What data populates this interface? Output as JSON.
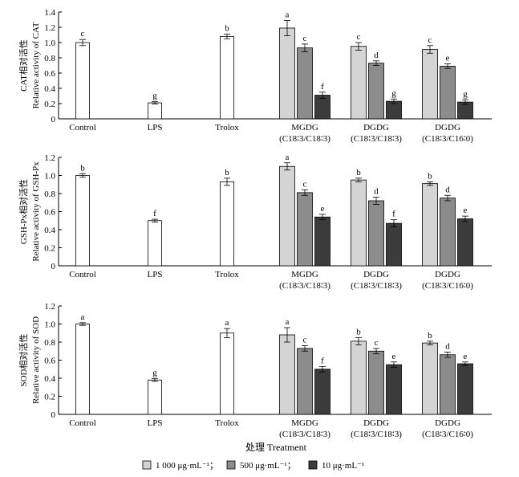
{
  "chart_data": [
    {
      "type": "bar",
      "ylabel_cn": "CAT相对活性",
      "ylabel_en": "Relative activity of CAT",
      "ylim": [
        0,
        1.4
      ],
      "yticks": [
        "0",
        "0.2",
        "0.4",
        "0.6",
        "0.8",
        "1.0",
        "1.2",
        "1.4"
      ],
      "groups": [
        {
          "label": "Control",
          "sublabel": "",
          "bars": [
            {
              "series": "control",
              "value": 1.0,
              "err": 0.04,
              "letter": "c"
            }
          ]
        },
        {
          "label": "LPS",
          "sublabel": "",
          "bars": [
            {
              "series": "control",
              "value": 0.21,
              "err": 0.015,
              "letter": "g"
            }
          ]
        },
        {
          "label": "Trolox",
          "sublabel": "",
          "bars": [
            {
              "series": "control",
              "value": 1.08,
              "err": 0.03,
              "letter": "b"
            }
          ]
        },
        {
          "label": "MGDG",
          "sublabel": "(C18∶3/C18∶3)",
          "bars": [
            {
              "series": "s1",
              "value": 1.19,
              "err": 0.1,
              "letter": "a"
            },
            {
              "series": "s2",
              "value": 0.93,
              "err": 0.05,
              "letter": "c"
            },
            {
              "series": "s3",
              "value": 0.31,
              "err": 0.04,
              "letter": "f"
            }
          ]
        },
        {
          "label": "DGDG",
          "sublabel": "(C18∶3/C18∶3)",
          "bars": [
            {
              "series": "s1",
              "value": 0.95,
              "err": 0.05,
              "letter": "c"
            },
            {
              "series": "s2",
              "value": 0.73,
              "err": 0.03,
              "letter": "d"
            },
            {
              "series": "s3",
              "value": 0.23,
              "err": 0.03,
              "letter": "g"
            }
          ]
        },
        {
          "label": "DGDG",
          "sublabel": "(C18∶3/C16∶0)",
          "bars": [
            {
              "series": "s1",
              "value": 0.91,
              "err": 0.05,
              "letter": "c"
            },
            {
              "series": "s2",
              "value": 0.69,
              "err": 0.03,
              "letter": "e"
            },
            {
              "series": "s3",
              "value": 0.22,
              "err": 0.03,
              "letter": "g"
            }
          ]
        }
      ]
    },
    {
      "type": "bar",
      "ylabel_cn": "GSH-Px相对活性",
      "ylabel_en": "Relative activity of GSH-Px",
      "ylim": [
        0,
        1.2
      ],
      "yticks": [
        "0",
        "0.2",
        "0.4",
        "0.6",
        "0.8",
        "1.0",
        "1.2"
      ],
      "groups": [
        {
          "label": "Control",
          "sublabel": "",
          "bars": [
            {
              "series": "control",
              "value": 1.0,
              "err": 0.02,
              "letter": "b"
            }
          ]
        },
        {
          "label": "LPS",
          "sublabel": "",
          "bars": [
            {
              "series": "control",
              "value": 0.5,
              "err": 0.015,
              "letter": "f"
            }
          ]
        },
        {
          "label": "Trolox",
          "sublabel": "",
          "bars": [
            {
              "series": "control",
              "value": 0.93,
              "err": 0.04,
              "letter": "b"
            }
          ]
        },
        {
          "label": "MGDG",
          "sublabel": "(C18∶3/C18∶3)",
          "bars": [
            {
              "series": "s1",
              "value": 1.1,
              "err": 0.04,
              "letter": "a"
            },
            {
              "series": "s2",
              "value": 0.81,
              "err": 0.03,
              "letter": "c"
            },
            {
              "series": "s3",
              "value": 0.54,
              "err": 0.03,
              "letter": "e"
            }
          ]
        },
        {
          "label": "DGDG",
          "sublabel": "(C18∶3/C18∶3)",
          "bars": [
            {
              "series": "s1",
              "value": 0.95,
              "err": 0.02,
              "letter": "b"
            },
            {
              "series": "s2",
              "value": 0.72,
              "err": 0.04,
              "letter": "d"
            },
            {
              "series": "s3",
              "value": 0.47,
              "err": 0.04,
              "letter": "f"
            }
          ]
        },
        {
          "label": "DGDG",
          "sublabel": "(C18∶3/C16∶0)",
          "bars": [
            {
              "series": "s1",
              "value": 0.91,
              "err": 0.02,
              "letter": "b"
            },
            {
              "series": "s2",
              "value": 0.75,
              "err": 0.03,
              "letter": "d"
            },
            {
              "series": "s3",
              "value": 0.52,
              "err": 0.03,
              "letter": "e"
            }
          ]
        }
      ]
    },
    {
      "type": "bar",
      "ylabel_cn": "SOD相对活性",
      "ylabel_en": "Relative activity of SOD",
      "ylim": [
        0,
        1.2
      ],
      "yticks": [
        "0",
        "0.2",
        "0.4",
        "0.6",
        "0.8",
        "1.0",
        "1.2"
      ],
      "groups": [
        {
          "label": "Control",
          "sublabel": "",
          "bars": [
            {
              "series": "control",
              "value": 1.0,
              "err": 0.015,
              "letter": "a"
            }
          ]
        },
        {
          "label": "LPS",
          "sublabel": "",
          "bars": [
            {
              "series": "control",
              "value": 0.38,
              "err": 0.015,
              "letter": "g"
            }
          ]
        },
        {
          "label": "Trolox",
          "sublabel": "",
          "bars": [
            {
              "series": "control",
              "value": 0.9,
              "err": 0.05,
              "letter": "a"
            }
          ]
        },
        {
          "label": "MGDG",
          "sublabel": "(C18∶3/C18∶3)",
          "bars": [
            {
              "series": "s1",
              "value": 0.88,
              "err": 0.08,
              "letter": "a"
            },
            {
              "series": "s2",
              "value": 0.73,
              "err": 0.03,
              "letter": "c"
            },
            {
              "series": "s3",
              "value": 0.5,
              "err": 0.03,
              "letter": "f"
            }
          ]
        },
        {
          "label": "DGDG",
          "sublabel": "(C18∶3/C18∶3)",
          "bars": [
            {
              "series": "s1",
              "value": 0.81,
              "err": 0.04,
              "letter": "b"
            },
            {
              "series": "s2",
              "value": 0.7,
              "err": 0.03,
              "letter": "c"
            },
            {
              "series": "s3",
              "value": 0.55,
              "err": 0.03,
              "letter": "e"
            }
          ]
        },
        {
          "label": "DGDG",
          "sublabel": "(C18∶3/C16∶0)",
          "bars": [
            {
              "series": "s1",
              "value": 0.79,
              "err": 0.02,
              "letter": "b"
            },
            {
              "series": "s2",
              "value": 0.66,
              "err": 0.03,
              "letter": "d"
            },
            {
              "series": "s3",
              "value": 0.56,
              "err": 0.02,
              "letter": "e"
            }
          ]
        }
      ]
    }
  ],
  "xlabel": "处理 Treatment",
  "legend": [
    {
      "key": "s1",
      "label": "1 000 μg·mL⁻¹；",
      "color": "#d4d4d4"
    },
    {
      "key": "s2",
      "label": "500 μg·mL⁻¹；",
      "color": "#8c8c8c"
    },
    {
      "key": "s3",
      "label": "10 μg·mL⁻¹",
      "color": "#3c3c3c"
    }
  ],
  "series_colors": {
    "control": "#ffffff",
    "s1": "#d4d4d4",
    "s2": "#8c8c8c",
    "s3": "#3c3c3c"
  }
}
